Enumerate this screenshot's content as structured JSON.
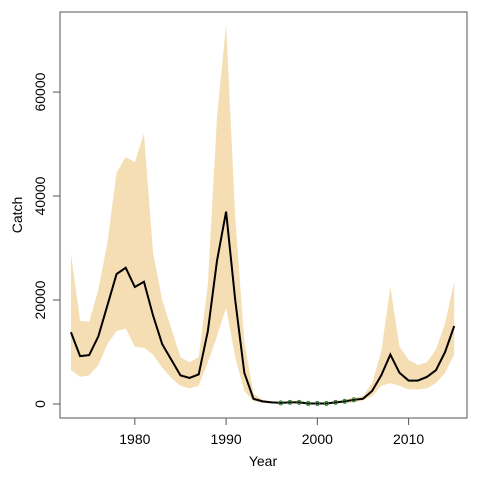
{
  "chart_data": {
    "type": "line",
    "x_label": "Year",
    "y_label": "Catch",
    "x": [
      1973,
      1974,
      1975,
      1976,
      1977,
      1978,
      1979,
      1980,
      1981,
      1982,
      1983,
      1984,
      1985,
      1986,
      1987,
      1988,
      1989,
      1990,
      1991,
      1992,
      1993,
      1994,
      1995,
      1996,
      1997,
      1998,
      1999,
      2000,
      2001,
      2002,
      2003,
      2004,
      2005,
      2006,
      2007,
      2008,
      2009,
      2010,
      2011,
      2012,
      2013,
      2014,
      2015
    ],
    "band": {
      "color": "#f5deb3",
      "lower": [
        6500,
        5200,
        5500,
        7500,
        11500,
        14000,
        14500,
        11000,
        10800,
        9500,
        7000,
        5000,
        3500,
        3000,
        3500,
        8000,
        13000,
        18500,
        9000,
        2500,
        500,
        200,
        100,
        80,
        100,
        100,
        50,
        50,
        50,
        100,
        200,
        300,
        700,
        1500,
        3500,
        4000,
        3500,
        2800,
        2800,
        3000,
        4000,
        6000,
        9500
      ],
      "upper": [
        29000,
        16000,
        15800,
        22000,
        31000,
        44500,
        47500,
        46500,
        52000,
        29000,
        20000,
        14500,
        9000,
        8000,
        9000,
        23000,
        55000,
        73000,
        36000,
        12000,
        2000,
        800,
        500,
        500,
        600,
        600,
        300,
        300,
        300,
        500,
        800,
        1200,
        1500,
        4000,
        10000,
        22500,
        11000,
        8500,
        7500,
        8000,
        10500,
        15500,
        23500
      ]
    },
    "series": [
      {
        "name": "median",
        "color": "#000000",
        "values": [
          13800,
          9200,
          9400,
          13000,
          19000,
          25000,
          26200,
          22500,
          23500,
          17000,
          11500,
          8500,
          5500,
          5000,
          5700,
          14000,
          27500,
          37000,
          20000,
          6000,
          1000,
          500,
          300,
          200,
          300,
          300,
          100,
          100,
          100,
          300,
          500,
          800,
          1000,
          2500,
          5500,
          9500,
          6000,
          4500,
          4500,
          5200,
          6500,
          10000,
          15000
        ]
      }
    ],
    "observed": {
      "color": "#2e7d32",
      "x": [
        1996,
        1997,
        1998,
        1999,
        2000,
        2001,
        2002,
        2003,
        2004
      ],
      "values": [
        200,
        300,
        300,
        100,
        100,
        100,
        300,
        500,
        800
      ]
    },
    "xlim": [
      1971.8,
      2016.4
    ],
    "ylim": [
      -2700,
      75400
    ],
    "xticks": [
      1980,
      1990,
      2000,
      2010
    ],
    "yticks": [
      0,
      20000,
      40000,
      60000
    ]
  }
}
